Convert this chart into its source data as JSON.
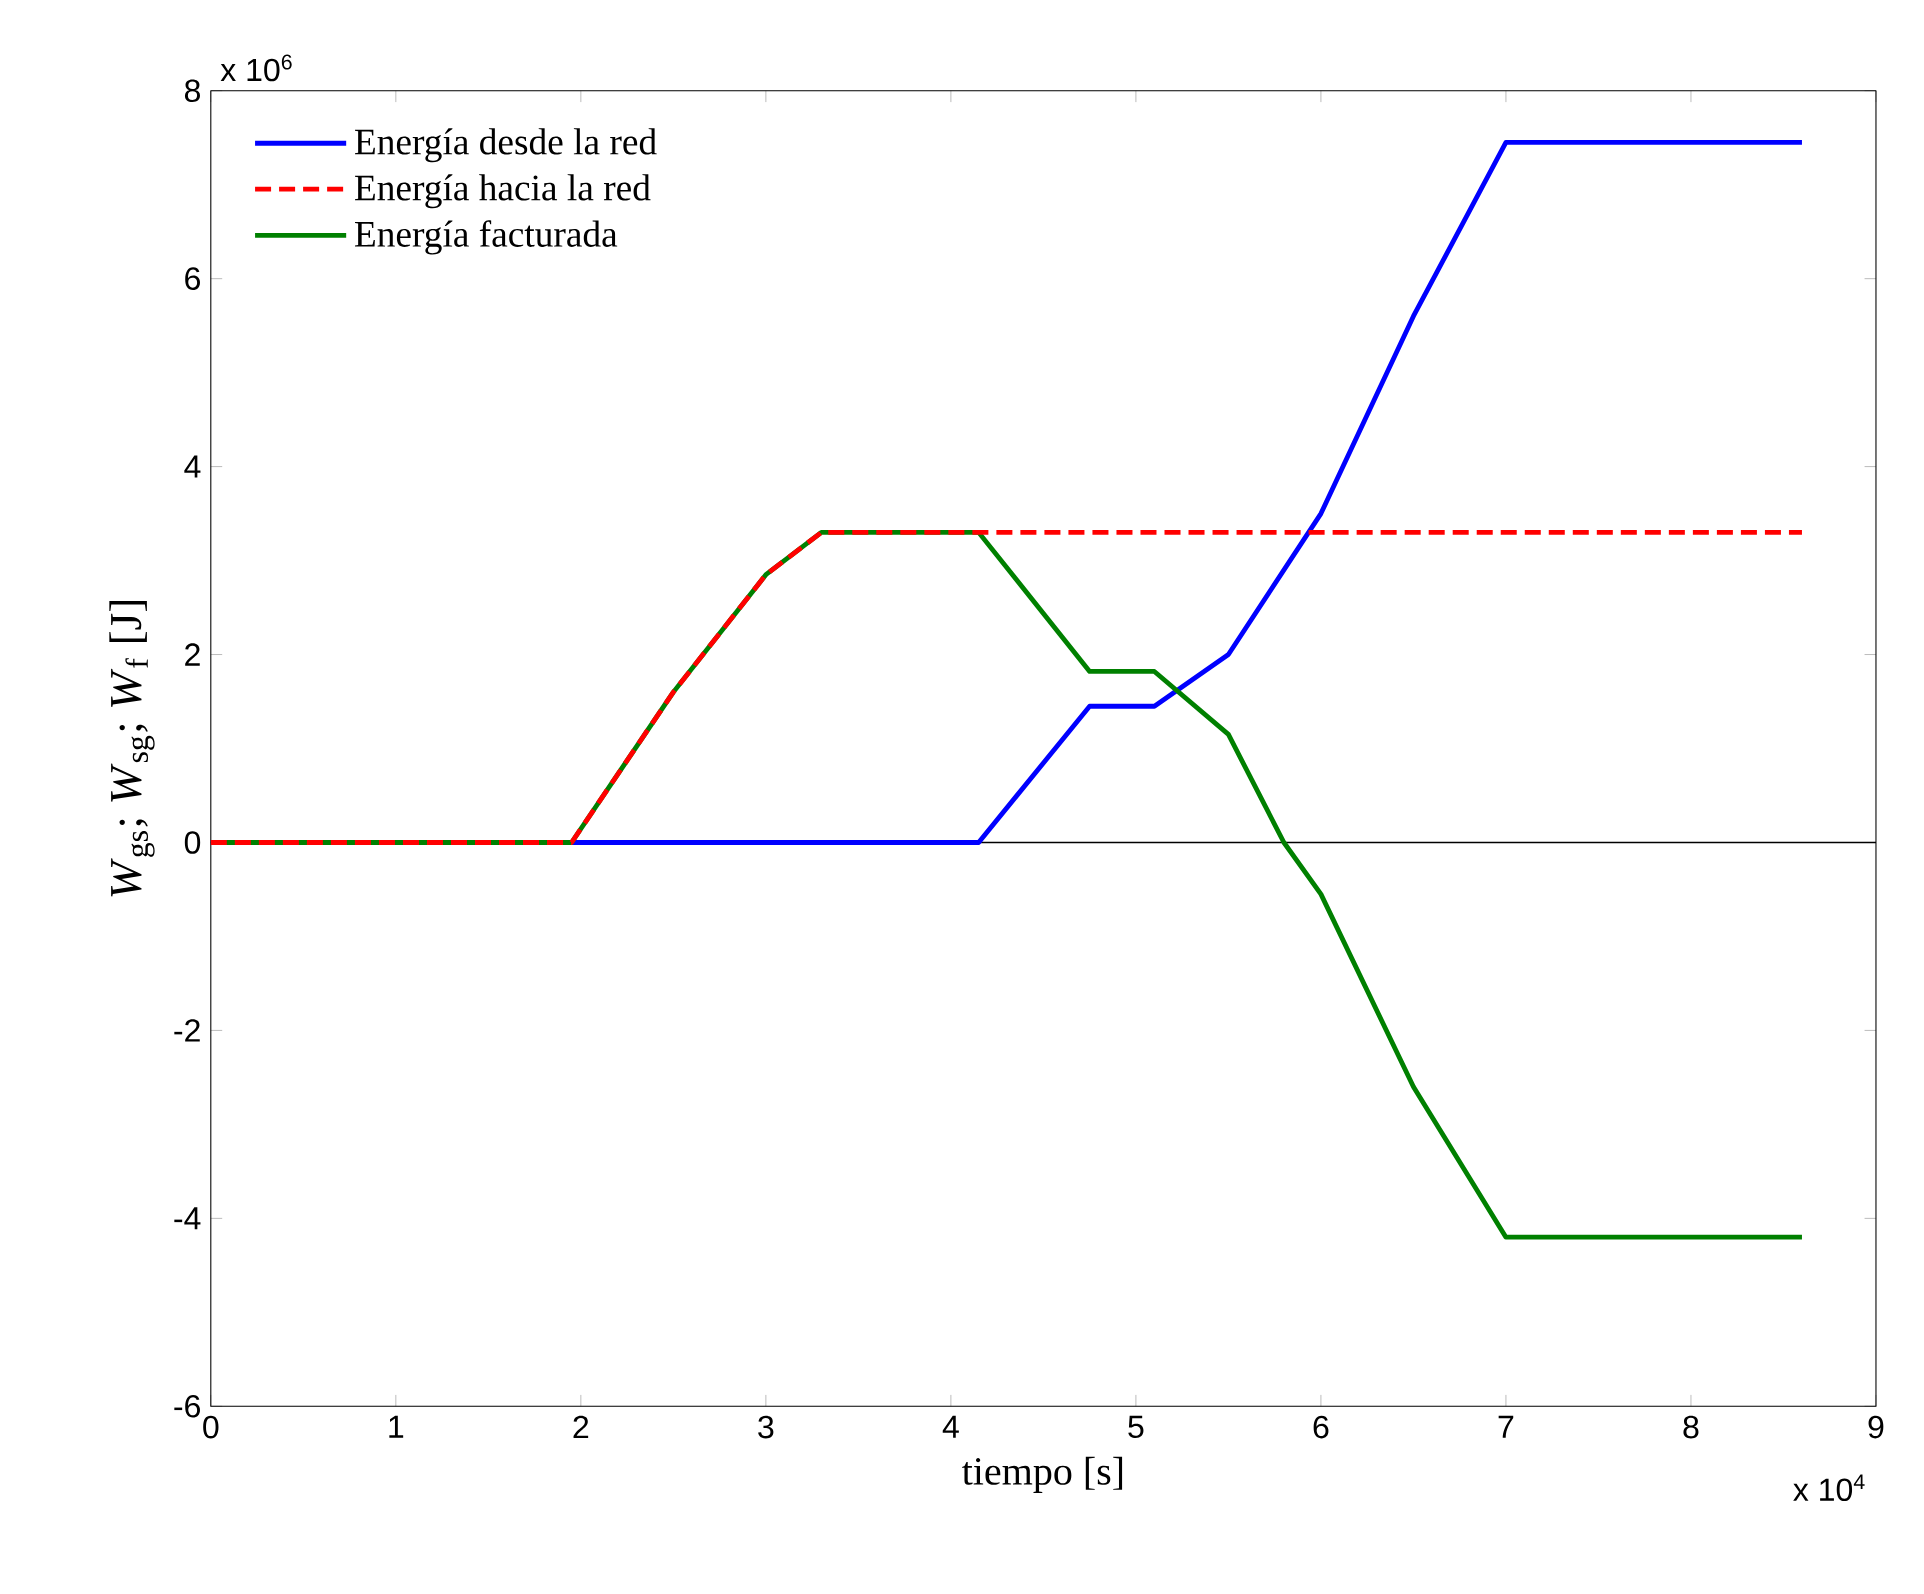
{
  "chart_data": {
    "type": "line",
    "xlabel": "tiempo [s]",
    "ylabel": "*W*$_{gs}$; *W*$_{sg}$; *W*$_{f}$ [J]",
    "xlim": [
      0,
      9
    ],
    "ylim": [
      -6,
      8
    ],
    "xticks": [
      0,
      1,
      2,
      3,
      4,
      5,
      6,
      7,
      8,
      9
    ],
    "yticks": [
      -6,
      -4,
      -2,
      0,
      2,
      4,
      6,
      8
    ],
    "legend": "top left",
    "grid": false,
    "annotations": [
      "x 10$^{6}$",
      "x 10$^{4}$"
    ],
    "ref_lines": [
      {
        "axis": "y",
        "value": 0,
        "color": "#000000"
      }
    ],
    "series": [
      {
        "name": "Energía desde la red",
        "color": "#0000ff",
        "line_style": "solid",
        "x": [
          0,
          4.15,
          4.75,
          5.1,
          5.5,
          6.0,
          6.5,
          7.0,
          8.6
        ],
        "values": [
          0,
          0,
          1.45,
          1.45,
          2.0,
          3.5,
          5.6,
          7.45,
          7.45
        ]
      },
      {
        "name": "Energía hacia la red",
        "color": "#ff0000",
        "line_style": "dashed",
        "x": [
          0,
          1.95,
          2.5,
          3.0,
          3.3,
          8.6
        ],
        "values": [
          0,
          0,
          1.6,
          2.85,
          3.3,
          3.3
        ]
      },
      {
        "name": "Energía facturada",
        "color": "#008000",
        "line_style": "solid",
        "x": [
          0,
          1.95,
          2.5,
          3.0,
          3.3,
          4.15,
          4.75,
          5.1,
          5.5,
          5.8,
          6.0,
          6.5,
          7.0,
          8.6
        ],
        "values": [
          0,
          0,
          1.6,
          2.85,
          3.3,
          3.3,
          1.82,
          1.82,
          1.15,
          0,
          -0.55,
          -2.6,
          -4.2,
          -4.2
        ]
      }
    ]
  }
}
